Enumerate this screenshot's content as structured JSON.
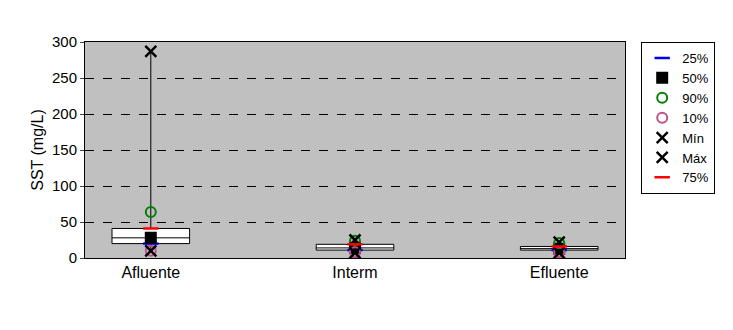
{
  "chart_data": {
    "type": "box",
    "y_label": "SST (mg/L)",
    "categories": [
      "Afluente",
      "Interm",
      "Efluente"
    ],
    "ylim": [
      0,
      300
    ],
    "yticks": [
      0,
      50,
      100,
      150,
      200,
      250,
      300
    ],
    "grid": true,
    "legend": "right",
    "series": [
      {
        "name": "25%",
        "color": "#0000ff",
        "marker": "dash",
        "values": [
          20,
          11,
          11
        ]
      },
      {
        "name": "50%",
        "color": "#000000",
        "marker": "square",
        "values": [
          28,
          14,
          13
        ]
      },
      {
        "name": "90%",
        "color": "#008000",
        "marker": "circle-open",
        "values": [
          64,
          24,
          21
        ]
      },
      {
        "name": "10%",
        "color": "#c0508a",
        "marker": "circle-open",
        "values": [
          10,
          8,
          8
        ]
      },
      {
        "name": "Mín",
        "color": "#000000",
        "marker": "x",
        "values": [
          10,
          7,
          7
        ]
      },
      {
        "name": "Máx",
        "color": "#000000",
        "marker": "x",
        "values": [
          287,
          25,
          22
        ]
      },
      {
        "name": "75%",
        "color": "#ff0000",
        "marker": "dash",
        "values": [
          41,
          19,
          16
        ]
      }
    ]
  }
}
